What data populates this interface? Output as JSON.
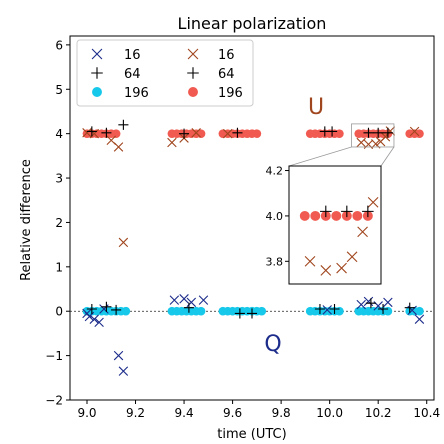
{
  "chart_data": {
    "type": "scatter",
    "title": "Linear polarization",
    "xlabel": "time (UTC)",
    "ylabel": "Relative difference",
    "xlim": [
      8.93,
      10.43
    ],
    "ylim": [
      -2,
      6.2
    ],
    "xticks": [
      9.0,
      9.2,
      9.4,
      9.6,
      9.8,
      10.0,
      10.2,
      10.4
    ],
    "xtick_labels": [
      "9.0",
      "9.2",
      "9.4",
      "9.6",
      "9.8",
      "10.0",
      "10.2",
      "10.4"
    ],
    "yticks": [
      -2,
      -1,
      0,
      1,
      2,
      3,
      4,
      5,
      6
    ],
    "ytick_labels": [
      "−2",
      "−1",
      "0",
      "1",
      "2",
      "3",
      "4",
      "5",
      "6"
    ],
    "grid": false,
    "legend_placement": "top-left",
    "annotations": [
      "U",
      "Q"
    ],
    "annotation_colors": {
      "U": "#a0461e",
      "Q": "#1c2c8a"
    },
    "colors": {
      "q_cross": "#1c2c8a",
      "q_plus": "#000000",
      "q_dot": "#16c8ea",
      "u_cross": "#a0461e",
      "u_plus": "#000000",
      "u_dot": "#f05a50"
    },
    "series": [
      {
        "name": "16",
        "group": "Q",
        "marker": "x",
        "color_key": "q_cross",
        "points": [
          [
            9.0,
            -0.05
          ],
          [
            9.01,
            -0.12
          ],
          [
            9.03,
            -0.18
          ],
          [
            9.05,
            -0.25
          ],
          [
            9.07,
            0.05
          ],
          [
            9.13,
            -1.0
          ],
          [
            9.15,
            -1.35
          ],
          [
            9.36,
            0.25
          ],
          [
            9.4,
            0.28
          ],
          [
            9.43,
            0.2
          ],
          [
            9.48,
            0.25
          ],
          [
            9.99,
            0.03
          ],
          [
            10.13,
            0.15
          ],
          [
            10.16,
            0.22
          ],
          [
            10.2,
            0.12
          ],
          [
            10.24,
            0.2
          ],
          [
            10.34,
            0.02
          ],
          [
            10.37,
            -0.18
          ]
        ]
      },
      {
        "name": "64",
        "group": "Q",
        "marker": "+",
        "color_key": "q_plus",
        "points": [
          [
            9.02,
            0.05
          ],
          [
            9.08,
            0.1
          ],
          [
            9.12,
            0.03
          ],
          [
            9.42,
            0.08
          ],
          [
            9.63,
            -0.05
          ],
          [
            9.68,
            -0.05
          ],
          [
            9.96,
            0.05
          ],
          [
            10.02,
            0.05
          ],
          [
            10.17,
            0.18
          ],
          [
            10.22,
            0.05
          ],
          [
            10.33,
            0.08
          ]
        ]
      },
      {
        "name": "196",
        "group": "Q",
        "marker": "o",
        "color_key": "q_dot",
        "points": [
          [
            9.0,
            0
          ],
          [
            9.02,
            0
          ],
          [
            9.04,
            0
          ],
          [
            9.06,
            0
          ],
          [
            9.08,
            0
          ],
          [
            9.1,
            0
          ],
          [
            9.12,
            0
          ],
          [
            9.14,
            0
          ],
          [
            9.16,
            0
          ],
          [
            9.35,
            0
          ],
          [
            9.37,
            0
          ],
          [
            9.39,
            0
          ],
          [
            9.41,
            0
          ],
          [
            9.43,
            0
          ],
          [
            9.45,
            0
          ],
          [
            9.47,
            0
          ],
          [
            9.56,
            0
          ],
          [
            9.58,
            0
          ],
          [
            9.6,
            0
          ],
          [
            9.62,
            0
          ],
          [
            9.64,
            0
          ],
          [
            9.66,
            0
          ],
          [
            9.68,
            0
          ],
          [
            9.7,
            0
          ],
          [
            9.72,
            0
          ],
          [
            9.92,
            0
          ],
          [
            9.94,
            0
          ],
          [
            9.96,
            0
          ],
          [
            9.98,
            0
          ],
          [
            10.0,
            0
          ],
          [
            10.02,
            0
          ],
          [
            10.04,
            0
          ],
          [
            10.12,
            0
          ],
          [
            10.14,
            0
          ],
          [
            10.16,
            0
          ],
          [
            10.18,
            0
          ],
          [
            10.2,
            0
          ],
          [
            10.22,
            0
          ],
          [
            10.24,
            0
          ],
          [
            10.33,
            0
          ],
          [
            10.35,
            0
          ],
          [
            10.37,
            0
          ]
        ]
      },
      {
        "name": "16",
        "group": "U",
        "marker": "x",
        "color_key": "u_cross",
        "points": [
          [
            9.0,
            4.02
          ],
          [
            9.03,
            4.0
          ],
          [
            9.1,
            3.85
          ],
          [
            9.13,
            3.7
          ],
          [
            9.15,
            1.55
          ],
          [
            9.35,
            3.8
          ],
          [
            9.4,
            3.9
          ],
          [
            9.45,
            4.02
          ],
          [
            9.58,
            4.0
          ],
          [
            10.13,
            3.8
          ],
          [
            10.16,
            3.76
          ],
          [
            10.19,
            3.77
          ],
          [
            10.21,
            3.82
          ],
          [
            10.23,
            3.93
          ],
          [
            10.25,
            4.06
          ],
          [
            10.35,
            4.05
          ]
        ]
      },
      {
        "name": "64",
        "group": "U",
        "marker": "+",
        "color_key": "u_plus",
        "points": [
          [
            9.02,
            4.05
          ],
          [
            9.08,
            4.02
          ],
          [
            9.15,
            4.2
          ],
          [
            9.4,
            4.0
          ],
          [
            9.62,
            4.02
          ],
          [
            9.98,
            4.05
          ],
          [
            10.01,
            4.05
          ],
          [
            10.16,
            4.02
          ],
          [
            10.2,
            4.02
          ],
          [
            10.24,
            4.02
          ]
        ]
      },
      {
        "name": "196",
        "group": "U",
        "marker": "o",
        "color_key": "u_dot",
        "points": [
          [
            9.0,
            4.0
          ],
          [
            9.02,
            4.0
          ],
          [
            9.04,
            4.0
          ],
          [
            9.06,
            4.0
          ],
          [
            9.08,
            4.0
          ],
          [
            9.1,
            4.0
          ],
          [
            9.12,
            4.0
          ],
          [
            9.35,
            4.0
          ],
          [
            9.37,
            4.0
          ],
          [
            9.39,
            4.0
          ],
          [
            9.41,
            4.0
          ],
          [
            9.43,
            4.0
          ],
          [
            9.45,
            4.0
          ],
          [
            9.47,
            4.0
          ],
          [
            9.56,
            4.0
          ],
          [
            9.58,
            4.0
          ],
          [
            9.6,
            4.0
          ],
          [
            9.62,
            4.0
          ],
          [
            9.64,
            4.0
          ],
          [
            9.66,
            4.0
          ],
          [
            9.68,
            4.0
          ],
          [
            9.7,
            4.0
          ],
          [
            9.92,
            4.0
          ],
          [
            9.94,
            4.0
          ],
          [
            9.96,
            4.0
          ],
          [
            9.98,
            4.0
          ],
          [
            10.0,
            4.0
          ],
          [
            10.02,
            4.0
          ],
          [
            10.04,
            4.0
          ],
          [
            10.12,
            4.0
          ],
          [
            10.14,
            4.0
          ],
          [
            10.16,
            4.0
          ],
          [
            10.18,
            4.0
          ],
          [
            10.2,
            4.0
          ],
          [
            10.22,
            4.0
          ],
          [
            10.24,
            4.0
          ],
          [
            10.33,
            4.0
          ],
          [
            10.35,
            4.0
          ],
          [
            10.37,
            4.0
          ]
        ]
      }
    ],
    "inset": {
      "xlim": [
        10.09,
        10.265
      ],
      "ylim": [
        3.7,
        4.22
      ],
      "yticks": [
        3.8,
        4.0,
        4.2
      ],
      "ytick_labels": [
        "3.8",
        "4.0",
        "4.2"
      ]
    }
  }
}
